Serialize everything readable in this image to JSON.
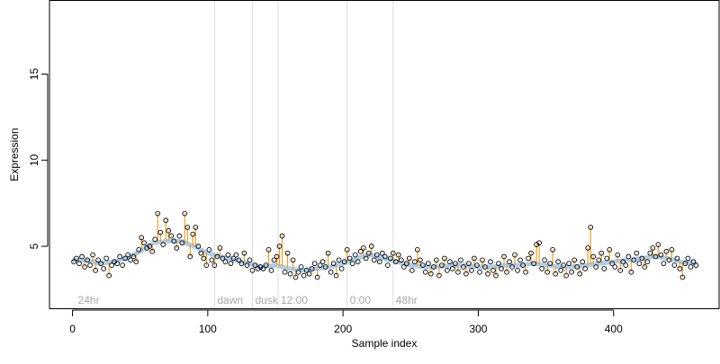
{
  "chart_data": {
    "type": "scatter",
    "xlabel": "Sample index",
    "ylabel": "Expression",
    "xlim": [
      -17,
      478
    ],
    "ylim": [
      1.4,
      19.3
    ],
    "x_ticks": [
      0,
      100,
      200,
      300,
      400
    ],
    "y_ticks": [
      5,
      10,
      15
    ],
    "grid": false,
    "legend": "none",
    "colors": {
      "points": "#000000",
      "fitted": "#a6c8e8",
      "residual": "#f0a020",
      "marker_line": "#dddddd",
      "marker_text": "#a8a8a8"
    },
    "markers": [
      {
        "x": 2,
        "label": "24hr",
        "line": false
      },
      {
        "x": 105,
        "label": "dawn",
        "line": true
      },
      {
        "x": 133,
        "label": "dusk",
        "line": true
      },
      {
        "x": 152,
        "label": "12:00",
        "line": true
      },
      {
        "x": 203,
        "label": "0:00",
        "line": true
      },
      {
        "x": 237,
        "label": "48hr",
        "line": true
      }
    ],
    "fitted_curve": [
      [
        1,
        4.2
      ],
      [
        10,
        4.2
      ],
      [
        20,
        4.0
      ],
      [
        30,
        4.1
      ],
      [
        40,
        4.3
      ],
      [
        50,
        4.7
      ],
      [
        60,
        5.2
      ],
      [
        70,
        5.3
      ],
      [
        80,
        5.3
      ],
      [
        90,
        5.0
      ],
      [
        100,
        4.6
      ],
      [
        110,
        4.4
      ],
      [
        120,
        4.2
      ],
      [
        130,
        4.0
      ],
      [
        140,
        3.8
      ],
      [
        150,
        3.9
      ],
      [
        160,
        3.7
      ],
      [
        170,
        3.6
      ],
      [
        180,
        3.7
      ],
      [
        190,
        3.8
      ],
      [
        200,
        4.0
      ],
      [
        210,
        4.3
      ],
      [
        220,
        4.5
      ],
      [
        230,
        4.3
      ],
      [
        240,
        4.1
      ],
      [
        250,
        3.9
      ],
      [
        260,
        3.8
      ],
      [
        270,
        3.8
      ],
      [
        280,
        3.9
      ],
      [
        290,
        3.9
      ],
      [
        300,
        3.8
      ],
      [
        310,
        3.8
      ],
      [
        320,
        3.9
      ],
      [
        330,
        3.9
      ],
      [
        340,
        4.0
      ],
      [
        350,
        3.9
      ],
      [
        360,
        3.8
      ],
      [
        370,
        3.8
      ],
      [
        380,
        3.9
      ],
      [
        390,
        4.0
      ],
      [
        400,
        4.1
      ],
      [
        410,
        4.2
      ],
      [
        420,
        4.3
      ],
      [
        430,
        4.4
      ],
      [
        440,
        4.3
      ],
      [
        450,
        4.1
      ],
      [
        460,
        4.0
      ]
    ],
    "points": [
      [
        1,
        4.1
      ],
      [
        3,
        4.3
      ],
      [
        5,
        4.0
      ],
      [
        7,
        4.4
      ],
      [
        9,
        3.8
      ],
      [
        11,
        4.2
      ],
      [
        13,
        3.9
      ],
      [
        15,
        4.5
      ],
      [
        17,
        3.6
      ],
      [
        19,
        4.2
      ],
      [
        21,
        4.0
      ],
      [
        23,
        3.7
      ],
      [
        25,
        4.3
      ],
      [
        27,
        3.3
      ],
      [
        29,
        3.9
      ],
      [
        31,
        4.1
      ],
      [
        33,
        4.0
      ],
      [
        35,
        4.4
      ],
      [
        37,
        3.9
      ],
      [
        39,
        4.3
      ],
      [
        41,
        4.5
      ],
      [
        43,
        4.2
      ],
      [
        45,
        4.4
      ],
      [
        47,
        4.1
      ],
      [
        49,
        4.8
      ],
      [
        51,
        5.5
      ],
      [
        53,
        5.2
      ],
      [
        55,
        4.9
      ],
      [
        57,
        5.0
      ],
      [
        59,
        4.7
      ],
      [
        61,
        5.4
      ],
      [
        63,
        6.9
      ],
      [
        65,
        5.8
      ],
      [
        67,
        5.1
      ],
      [
        69,
        6.5
      ],
      [
        71,
        5.9
      ],
      [
        73,
        5.6
      ],
      [
        75,
        5.3
      ],
      [
        77,
        4.9
      ],
      [
        79,
        5.6
      ],
      [
        81,
        5.2
      ],
      [
        83,
        6.9
      ],
      [
        85,
        6.1
      ],
      [
        87,
        4.4
      ],
      [
        89,
        5.7
      ],
      [
        91,
        6.1
      ],
      [
        93,
        5.0
      ],
      [
        95,
        4.6
      ],
      [
        97,
        4.3
      ],
      [
        99,
        3.9
      ],
      [
        101,
        4.8
      ],
      [
        103,
        4.2
      ],
      [
        105,
        3.9
      ],
      [
        107,
        4.4
      ],
      [
        109,
        4.9
      ],
      [
        111,
        4.3
      ],
      [
        113,
        4.1
      ],
      [
        115,
        4.5
      ],
      [
        117,
        4.0
      ],
      [
        119,
        4.3
      ],
      [
        121,
        4.5
      ],
      [
        123,
        4.2
      ],
      [
        125,
        4.0
      ],
      [
        127,
        4.6
      ],
      [
        129,
        3.9
      ],
      [
        131,
        4.2
      ],
      [
        133,
        3.6
      ],
      [
        135,
        3.9
      ],
      [
        137,
        3.7
      ],
      [
        139,
        3.8
      ],
      [
        141,
        3.7
      ],
      [
        143,
        3.9
      ],
      [
        145,
        4.8
      ],
      [
        147,
        3.6
      ],
      [
        149,
        4.2
      ],
      [
        151,
        4.4
      ],
      [
        153,
        5.0
      ],
      [
        155,
        5.6
      ],
      [
        157,
        3.5
      ],
      [
        159,
        4.6
      ],
      [
        161,
        3.4
      ],
      [
        163,
        4.2
      ],
      [
        165,
        3.2
      ],
      [
        167,
        3.5
      ],
      [
        169,
        3.8
      ],
      [
        171,
        3.3
      ],
      [
        173,
        3.6
      ],
      [
        175,
        3.4
      ],
      [
        177,
        3.7
      ],
      [
        179,
        4.0
      ],
      [
        181,
        3.2
      ],
      [
        183,
        3.9
      ],
      [
        185,
        4.1
      ],
      [
        187,
        3.8
      ],
      [
        189,
        4.6
      ],
      [
        191,
        3.5
      ],
      [
        193,
        4.0
      ],
      [
        195,
        3.3
      ],
      [
        197,
        4.2
      ],
      [
        199,
        3.7
      ],
      [
        201,
        4.1
      ],
      [
        203,
        4.8
      ],
      [
        205,
        4.3
      ],
      [
        207,
        4.0
      ],
      [
        209,
        4.5
      ],
      [
        211,
        4.1
      ],
      [
        213,
        4.7
      ],
      [
        215,
        4.9
      ],
      [
        217,
        4.3
      ],
      [
        219,
        4.6
      ],
      [
        221,
        5.0
      ],
      [
        223,
        4.2
      ],
      [
        225,
        4.5
      ],
      [
        227,
        4.1
      ],
      [
        229,
        4.6
      ],
      [
        231,
        4.4
      ],
      [
        233,
        3.9
      ],
      [
        235,
        4.3
      ],
      [
        237,
        4.6
      ],
      [
        239,
        4.1
      ],
      [
        241,
        4.5
      ],
      [
        243,
        4.2
      ],
      [
        245,
        3.8
      ],
      [
        247,
        4.0
      ],
      [
        249,
        4.3
      ],
      [
        251,
        3.6
      ],
      [
        253,
        4.1
      ],
      [
        255,
        4.8
      ],
      [
        257,
        4.2
      ],
      [
        259,
        3.9
      ],
      [
        261,
        3.5
      ],
      [
        263,
        4.0
      ],
      [
        265,
        3.4
      ],
      [
        267,
        3.8
      ],
      [
        269,
        4.2
      ],
      [
        271,
        3.3
      ],
      [
        273,
        3.9
      ],
      [
        275,
        4.3
      ],
      [
        277,
        3.6
      ],
      [
        279,
        4.1
      ],
      [
        281,
        3.7
      ],
      [
        283,
        4.0
      ],
      [
        285,
        3.5
      ],
      [
        287,
        4.2
      ],
      [
        289,
        3.8
      ],
      [
        291,
        3.4
      ],
      [
        293,
        4.0
      ],
      [
        295,
        3.6
      ],
      [
        297,
        4.3
      ],
      [
        299,
        3.9
      ],
      [
        301,
        3.5
      ],
      [
        303,
        4.2
      ],
      [
        305,
        3.8
      ],
      [
        307,
        3.4
      ],
      [
        309,
        4.1
      ],
      [
        311,
        3.6
      ],
      [
        313,
        3.3
      ],
      [
        315,
        4.0
      ],
      [
        317,
        3.7
      ],
      [
        319,
        4.4
      ],
      [
        321,
        3.5
      ],
      [
        323,
        4.1
      ],
      [
        325,
        3.8
      ],
      [
        327,
        4.5
      ],
      [
        329,
        3.6
      ],
      [
        331,
        4.2
      ],
      [
        333,
        3.9
      ],
      [
        335,
        3.5
      ],
      [
        337,
        4.3
      ],
      [
        339,
        4.6
      ],
      [
        341,
        4.0
      ],
      [
        343,
        5.1
      ],
      [
        345,
        5.2
      ],
      [
        347,
        3.7
      ],
      [
        349,
        4.2
      ],
      [
        351,
        3.5
      ],
      [
        353,
        4.0
      ],
      [
        355,
        4.8
      ],
      [
        357,
        3.4
      ],
      [
        359,
        4.1
      ],
      [
        361,
        3.6
      ],
      [
        363,
        3.9
      ],
      [
        365,
        3.3
      ],
      [
        367,
        4.0
      ],
      [
        369,
        3.5
      ],
      [
        371,
        4.2
      ],
      [
        373,
        3.8
      ],
      [
        375,
        3.4
      ],
      [
        377,
        4.1
      ],
      [
        379,
        3.7
      ],
      [
        381,
        4.9
      ],
      [
        383,
        6.1
      ],
      [
        385,
        4.4
      ],
      [
        387,
        3.8
      ],
      [
        389,
        4.2
      ],
      [
        391,
        4.6
      ],
      [
        393,
        3.7
      ],
      [
        395,
        4.3
      ],
      [
        397,
        4.8
      ],
      [
        399,
        4.0
      ],
      [
        401,
        3.8
      ],
      [
        403,
        4.5
      ],
      [
        405,
        3.6
      ],
      [
        407,
        4.1
      ],
      [
        409,
        3.9
      ],
      [
        411,
        4.4
      ],
      [
        413,
        3.5
      ],
      [
        415,
        4.2
      ],
      [
        417,
        4.6
      ],
      [
        419,
        4.0
      ],
      [
        421,
        4.3
      ],
      [
        423,
        3.8
      ],
      [
        425,
        4.1
      ],
      [
        427,
        4.6
      ],
      [
        429,
        4.9
      ],
      [
        431,
        4.4
      ],
      [
        433,
        5.1
      ],
      [
        435,
        4.5
      ],
      [
        437,
        4.0
      ],
      [
        439,
        4.7
      ],
      [
        441,
        4.2
      ],
      [
        443,
        4.8
      ],
      [
        445,
        3.9
      ],
      [
        447,
        4.3
      ],
      [
        449,
        3.7
      ],
      [
        451,
        3.2
      ],
      [
        453,
        4.0
      ],
      [
        455,
        4.3
      ],
      [
        457,
        3.8
      ],
      [
        459,
        4.1
      ],
      [
        461,
        3.9
      ]
    ]
  }
}
